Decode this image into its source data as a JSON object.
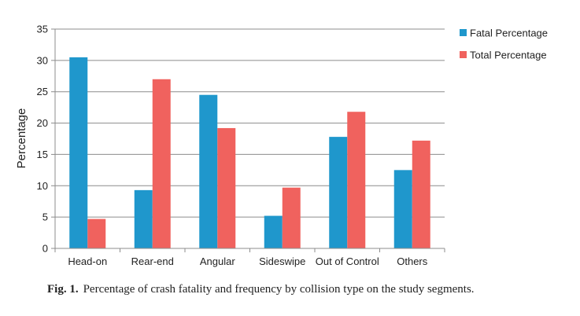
{
  "chart_data": {
    "type": "bar",
    "categories": [
      "Head-on",
      "Rear-end",
      "Angular",
      "Sideswipe",
      "Out of Control",
      "Others"
    ],
    "series": [
      {
        "name": "Fatal Percentage",
        "color": "#1f97cc",
        "values": [
          30.5,
          9.3,
          24.5,
          5.2,
          17.8,
          12.5
        ]
      },
      {
        "name": "Total Percentage",
        "color": "#f0625e",
        "values": [
          4.7,
          27.0,
          19.2,
          9.7,
          21.8,
          17.2
        ]
      }
    ],
    "ylabel": "Percentage",
    "ylim": [
      0,
      35
    ],
    "yticks": [
      0,
      5,
      10,
      15,
      20,
      25,
      30,
      35
    ],
    "grid": true,
    "legend_position": "right"
  },
  "caption": {
    "label": "Fig. 1.",
    "text": "Percentage of crash fatality and frequency by collision type on the study segments."
  }
}
